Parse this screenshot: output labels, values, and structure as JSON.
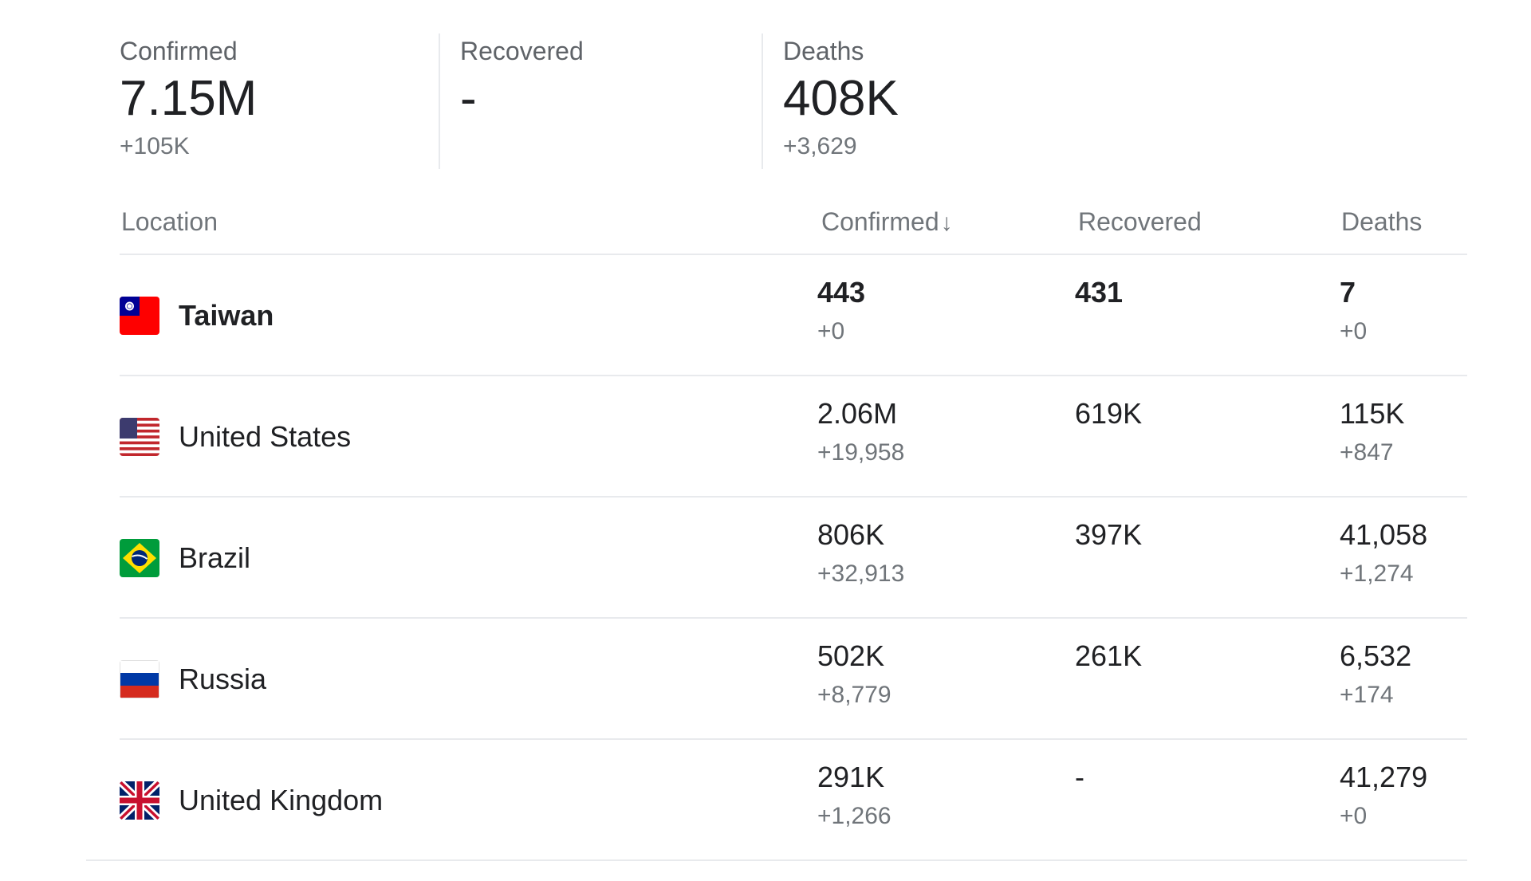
{
  "summary": {
    "confirmed": {
      "label": "Confirmed",
      "value": "7.15M",
      "delta": "+105K"
    },
    "recovered": {
      "label": "Recovered",
      "value": "-",
      "delta": ""
    },
    "deaths": {
      "label": "Deaths",
      "value": "408K",
      "delta": "+3,629"
    }
  },
  "table": {
    "headers": {
      "location": "Location",
      "confirmed": "Confirmed",
      "confirmed_sort_icon": "↓",
      "recovered": "Recovered",
      "deaths": "Deaths"
    },
    "rows": [
      {
        "country": "Taiwan",
        "flag_icon": "taiwan-flag-icon",
        "highlighted": true,
        "confirmed": "443",
        "confirmed_delta": "+0",
        "recovered": "431",
        "deaths": "7",
        "deaths_delta": "+0"
      },
      {
        "country": "United States",
        "flag_icon": "united-states-flag-icon",
        "highlighted": false,
        "confirmed": "2.06M",
        "confirmed_delta": "+19,958",
        "recovered": "619K",
        "deaths": "115K",
        "deaths_delta": "+847"
      },
      {
        "country": "Brazil",
        "flag_icon": "brazil-flag-icon",
        "highlighted": false,
        "confirmed": "806K",
        "confirmed_delta": "+32,913",
        "recovered": "397K",
        "deaths": "41,058",
        "deaths_delta": "+1,274"
      },
      {
        "country": "Russia",
        "flag_icon": "russia-flag-icon",
        "highlighted": false,
        "confirmed": "502K",
        "confirmed_delta": "+8,779",
        "recovered": "261K",
        "deaths": "6,532",
        "deaths_delta": "+174"
      },
      {
        "country": "United Kingdom",
        "flag_icon": "united-kingdom-flag-icon",
        "highlighted": false,
        "confirmed": "291K",
        "confirmed_delta": "+1,266",
        "recovered": "-",
        "deaths": "41,279",
        "deaths_delta": "+0"
      }
    ]
  },
  "colors": {
    "text_primary": "#202124",
    "text_secondary": "#70757a",
    "divider": "#e8eaed"
  }
}
